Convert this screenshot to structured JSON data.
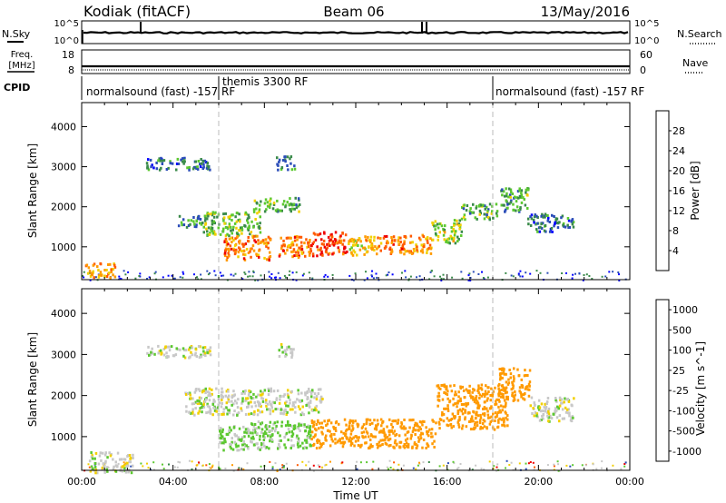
{
  "header": {
    "station": "Kodiak (fitACF)",
    "beam": "Beam 06",
    "date": "13/May/2016"
  },
  "noise_panel": {
    "left_label": "N.Sky",
    "left_ticks": [
      "10^5",
      "10^0"
    ],
    "right_label": "N.Search",
    "right_ticks": [
      "10^5",
      "10^0"
    ]
  },
  "freq_panel": {
    "left_label_1": "Freq.",
    "left_label_2": "[MHz]",
    "left_ticks": [
      "18",
      "8"
    ],
    "right_label": "Nave",
    "right_ticks": [
      "60",
      "0"
    ]
  },
  "cpid": {
    "label": "CPID",
    "segments": [
      {
        "start": 0,
        "end": 6,
        "name": "normalsound (fast) -157 RF"
      },
      {
        "start": 6,
        "end": 18,
        "name": "themis 3300 RF"
      },
      {
        "start": 18,
        "end": 24,
        "name": "normalsound (fast) -157 RF"
      }
    ]
  },
  "chart_data": [
    {
      "type": "heatmap",
      "name": "power",
      "ylabel": "Slant Range [km]",
      "yticks": [
        "1000",
        "2000",
        "3000",
        "4000"
      ],
      "ylim": [
        180,
        4600
      ],
      "xlim": [
        0,
        24
      ],
      "colorbar": {
        "label": "Power [dB]",
        "ticks": [
          "4",
          "8",
          "12",
          "16",
          "20",
          "24",
          "28"
        ],
        "range": [
          0,
          32
        ],
        "colors": [
          "#0000ff",
          "#2a4cb8",
          "#3a8a4a",
          "#5cc830",
          "#f2d000",
          "#ff9a00",
          "#ff5a00",
          "#ee0000"
        ]
      },
      "regions": [
        {
          "t0": 0.1,
          "t1": 1.5,
          "r0": 250,
          "r1": 620,
          "v": 22
        },
        {
          "t0": 2.8,
          "t1": 5.6,
          "r0": 2950,
          "r1": 3250,
          "v": 8
        },
        {
          "t0": 4.2,
          "t1": 5.4,
          "r0": 1500,
          "r1": 1800,
          "v": 10
        },
        {
          "t0": 5.3,
          "t1": 7.8,
          "r0": 1300,
          "r1": 1900,
          "v": 14
        },
        {
          "t0": 6.2,
          "t1": 8.3,
          "r0": 700,
          "r1": 1300,
          "v": 24
        },
        {
          "t0": 7.5,
          "t1": 9.5,
          "r0": 1900,
          "r1": 2250,
          "v": 12
        },
        {
          "t0": 8.5,
          "t1": 10.0,
          "r0": 750,
          "r1": 1300,
          "v": 24
        },
        {
          "t0": 10.0,
          "t1": 11.6,
          "r0": 800,
          "r1": 1400,
          "v": 28
        },
        {
          "t0": 11.6,
          "t1": 12.8,
          "r0": 800,
          "r1": 1350,
          "v": 20
        },
        {
          "t0": 12.8,
          "t1": 14.3,
          "r0": 850,
          "r1": 1300,
          "v": 24
        },
        {
          "t0": 14.3,
          "t1": 15.3,
          "r0": 850,
          "r1": 1350,
          "v": 22
        },
        {
          "t0": 15.3,
          "t1": 16.6,
          "r0": 1100,
          "r1": 1700,
          "v": 16
        },
        {
          "t0": 16.6,
          "t1": 18.2,
          "r0": 1700,
          "r1": 2100,
          "v": 12
        },
        {
          "t0": 18.3,
          "t1": 19.6,
          "r0": 1900,
          "r1": 2500,
          "v": 12
        },
        {
          "t0": 19.5,
          "t1": 21.5,
          "r0": 1400,
          "r1": 1850,
          "v": 8
        },
        {
          "t0": 8.5,
          "t1": 9.3,
          "r0": 2950,
          "r1": 3300,
          "v": 10
        }
      ]
    },
    {
      "type": "heatmap",
      "name": "velocity",
      "xlabel": "Time UT",
      "ylabel": "Slant Range [km]",
      "xticks": [
        "00:00",
        "04:00",
        "08:00",
        "12:00",
        "16:00",
        "20:00",
        "00:00"
      ],
      "yticks": [
        "1000",
        "2000",
        "3000",
        "4000"
      ],
      "ylim": [
        180,
        4600
      ],
      "xlim": [
        0,
        24
      ],
      "colorbar": {
        "label": "Velocity [m s^-1]",
        "ticks": [
          "1000",
          "500",
          "100",
          "25",
          "-25",
          "-100",
          "-500",
          "-1000"
        ],
        "colors": [
          "#2a4cb8",
          "#3a8a4a",
          "#5cc830",
          "#c8c8c8",
          "#f2d000",
          "#ff9a00",
          "#ff5a00",
          "#ee0000"
        ]
      },
      "regions": [
        {
          "t0": 0.3,
          "t1": 2.2,
          "r0": 150,
          "r1": 650,
          "v": 0
        },
        {
          "t0": 2.8,
          "t1": 5.6,
          "r0": 2950,
          "r1": 3250,
          "v": 0
        },
        {
          "t0": 4.5,
          "t1": 10.5,
          "r0": 1550,
          "r1": 2200,
          "v": 0
        },
        {
          "t0": 6.0,
          "t1": 8.6,
          "r0": 700,
          "r1": 1400,
          "v": 40
        },
        {
          "t0": 8.6,
          "t1": 10.0,
          "r0": 750,
          "r1": 1400,
          "v": 40
        },
        {
          "t0": 10.0,
          "t1": 12.0,
          "r0": 750,
          "r1": 1450,
          "v": -200
        },
        {
          "t0": 12.0,
          "t1": 15.5,
          "r0": 750,
          "r1": 1450,
          "v": -200
        },
        {
          "t0": 15.5,
          "t1": 18.6,
          "r0": 1200,
          "r1": 2300,
          "v": -200
        },
        {
          "t0": 18.2,
          "t1": 19.6,
          "r0": 1900,
          "r1": 2700,
          "v": -300
        },
        {
          "t0": 19.6,
          "t1": 21.5,
          "r0": 1400,
          "r1": 2000,
          "v": 0
        },
        {
          "t0": 8.6,
          "t1": 9.3,
          "r0": 2950,
          "r1": 3300,
          "v": 0
        }
      ]
    }
  ]
}
